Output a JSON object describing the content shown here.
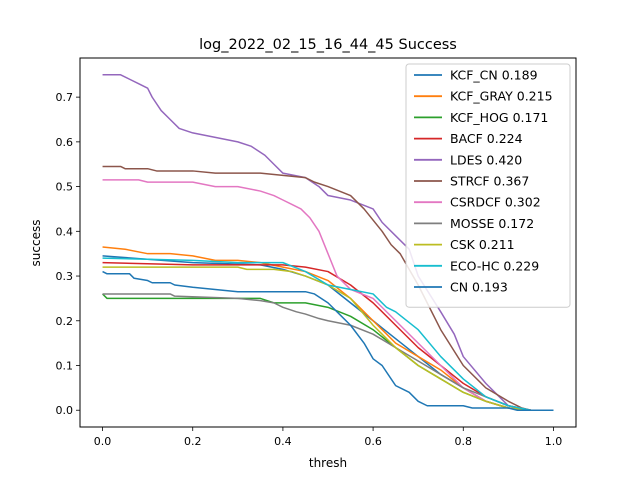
{
  "chart_data": {
    "type": "line",
    "title": "log_2022_02_15_16_44_45 Success",
    "xlabel": "thresh",
    "ylabel": "success",
    "xlim": [
      -0.05,
      1.05
    ],
    "ylim": [
      -0.0375,
      0.7875
    ],
    "xticks": [
      "0.0",
      "0.2",
      "0.4",
      "0.6",
      "0.8",
      "1.0"
    ],
    "yticks": [
      "0.0",
      "0.1",
      "0.2",
      "0.3",
      "0.4",
      "0.5",
      "0.6",
      "0.7"
    ],
    "legend_position": "top-right",
    "series": [
      {
        "name": "KCF_CN 0.189",
        "color": "#1f77b4",
        "points": [
          [
            0,
            0.345
          ],
          [
            0.2,
            0.33
          ],
          [
            0.35,
            0.325
          ],
          [
            0.4,
            0.315
          ],
          [
            0.45,
            0.3
          ],
          [
            0.5,
            0.28
          ],
          [
            0.55,
            0.24
          ],
          [
            0.6,
            0.2
          ],
          [
            0.65,
            0.16
          ],
          [
            0.7,
            0.12
          ],
          [
            0.75,
            0.08
          ],
          [
            0.8,
            0.05
          ],
          [
            0.85,
            0.02
          ],
          [
            0.9,
            0.005
          ],
          [
            0.95,
            0
          ],
          [
            1,
            0
          ]
        ]
      },
      {
        "name": "KCF_GRAY 0.215",
        "color": "#ff7f0e",
        "points": [
          [
            0,
            0.365
          ],
          [
            0.05,
            0.36
          ],
          [
            0.1,
            0.35
          ],
          [
            0.15,
            0.35
          ],
          [
            0.2,
            0.345
          ],
          [
            0.25,
            0.335
          ],
          [
            0.3,
            0.335
          ],
          [
            0.35,
            0.33
          ],
          [
            0.4,
            0.32
          ],
          [
            0.45,
            0.31
          ],
          [
            0.5,
            0.29
          ],
          [
            0.55,
            0.25
          ],
          [
            0.6,
            0.2
          ],
          [
            0.65,
            0.15
          ],
          [
            0.7,
            0.12
          ],
          [
            0.75,
            0.09
          ],
          [
            0.8,
            0.05
          ],
          [
            0.85,
            0.02
          ],
          [
            0.9,
            0.005
          ],
          [
            0.95,
            0
          ],
          [
            1,
            0
          ]
        ]
      },
      {
        "name": "KCF_HOG 0.171",
        "color": "#2ca02c",
        "points": [
          [
            0,
            0.26
          ],
          [
            0.01,
            0.25
          ],
          [
            0.2,
            0.25
          ],
          [
            0.35,
            0.25
          ],
          [
            0.38,
            0.24
          ],
          [
            0.45,
            0.24
          ],
          [
            0.5,
            0.23
          ],
          [
            0.55,
            0.21
          ],
          [
            0.6,
            0.18
          ],
          [
            0.65,
            0.14
          ],
          [
            0.7,
            0.1
          ],
          [
            0.75,
            0.07
          ],
          [
            0.8,
            0.04
          ],
          [
            0.85,
            0.02
          ],
          [
            0.9,
            0.005
          ],
          [
            0.95,
            0
          ],
          [
            1,
            0
          ]
        ]
      },
      {
        "name": "BACF 0.224",
        "color": "#d62728",
        "points": [
          [
            0,
            0.33
          ],
          [
            0.2,
            0.325
          ],
          [
            0.4,
            0.325
          ],
          [
            0.45,
            0.32
          ],
          [
            0.5,
            0.31
          ],
          [
            0.55,
            0.28
          ],
          [
            0.6,
            0.24
          ],
          [
            0.65,
            0.19
          ],
          [
            0.7,
            0.14
          ],
          [
            0.75,
            0.1
          ],
          [
            0.8,
            0.06
          ],
          [
            0.85,
            0.03
          ],
          [
            0.9,
            0.01
          ],
          [
            0.95,
            0
          ],
          [
            1,
            0
          ]
        ]
      },
      {
        "name": "LDES 0.420",
        "color": "#9467bd",
        "points": [
          [
            0,
            0.75
          ],
          [
            0.04,
            0.75
          ],
          [
            0.06,
            0.74
          ],
          [
            0.08,
            0.73
          ],
          [
            0.1,
            0.72
          ],
          [
            0.11,
            0.7
          ],
          [
            0.13,
            0.67
          ],
          [
            0.15,
            0.65
          ],
          [
            0.17,
            0.63
          ],
          [
            0.2,
            0.62
          ],
          [
            0.25,
            0.61
          ],
          [
            0.3,
            0.6
          ],
          [
            0.33,
            0.59
          ],
          [
            0.36,
            0.57
          ],
          [
            0.38,
            0.55
          ],
          [
            0.4,
            0.53
          ],
          [
            0.45,
            0.52
          ],
          [
            0.48,
            0.5
          ],
          [
            0.5,
            0.48
          ],
          [
            0.55,
            0.47
          ],
          [
            0.6,
            0.45
          ],
          [
            0.62,
            0.42
          ],
          [
            0.65,
            0.39
          ],
          [
            0.68,
            0.36
          ],
          [
            0.7,
            0.3
          ],
          [
            0.75,
            0.22
          ],
          [
            0.78,
            0.17
          ],
          [
            0.8,
            0.12
          ],
          [
            0.85,
            0.06
          ],
          [
            0.88,
            0.03
          ],
          [
            0.9,
            0.01
          ],
          [
            0.95,
            0
          ],
          [
            1,
            0
          ]
        ]
      },
      {
        "name": "STRCF 0.367",
        "color": "#8c564b",
        "points": [
          [
            0,
            0.545
          ],
          [
            0.04,
            0.545
          ],
          [
            0.05,
            0.54
          ],
          [
            0.1,
            0.54
          ],
          [
            0.12,
            0.535
          ],
          [
            0.2,
            0.535
          ],
          [
            0.25,
            0.53
          ],
          [
            0.35,
            0.53
          ],
          [
            0.4,
            0.525
          ],
          [
            0.45,
            0.52
          ],
          [
            0.47,
            0.51
          ],
          [
            0.5,
            0.5
          ],
          [
            0.55,
            0.48
          ],
          [
            0.58,
            0.45
          ],
          [
            0.62,
            0.4
          ],
          [
            0.64,
            0.37
          ],
          [
            0.66,
            0.35
          ],
          [
            0.7,
            0.28
          ],
          [
            0.75,
            0.18
          ],
          [
            0.8,
            0.1
          ],
          [
            0.85,
            0.05
          ],
          [
            0.9,
            0.02
          ],
          [
            0.93,
            0.005
          ],
          [
            0.95,
            0
          ],
          [
            1,
            0
          ]
        ]
      },
      {
        "name": "CSRDCF 0.302",
        "color": "#e377c2",
        "points": [
          [
            0,
            0.515
          ],
          [
            0.08,
            0.515
          ],
          [
            0.1,
            0.51
          ],
          [
            0.2,
            0.51
          ],
          [
            0.25,
            0.5
          ],
          [
            0.3,
            0.5
          ],
          [
            0.35,
            0.49
          ],
          [
            0.38,
            0.48
          ],
          [
            0.4,
            0.47
          ],
          [
            0.42,
            0.46
          ],
          [
            0.44,
            0.45
          ],
          [
            0.46,
            0.43
          ],
          [
            0.48,
            0.4
          ],
          [
            0.5,
            0.35
          ],
          [
            0.52,
            0.3
          ],
          [
            0.55,
            0.27
          ],
          [
            0.6,
            0.25
          ],
          [
            0.65,
            0.2
          ],
          [
            0.7,
            0.15
          ],
          [
            0.75,
            0.1
          ],
          [
            0.8,
            0.05
          ],
          [
            0.85,
            0.02
          ],
          [
            0.9,
            0.005
          ],
          [
            0.95,
            0
          ],
          [
            1,
            0
          ]
        ]
      },
      {
        "name": "MOSSE 0.172",
        "color": "#7f7f7f",
        "points": [
          [
            0,
            0.26
          ],
          [
            0.15,
            0.26
          ],
          [
            0.16,
            0.255
          ],
          [
            0.3,
            0.25
          ],
          [
            0.35,
            0.245
          ],
          [
            0.38,
            0.24
          ],
          [
            0.4,
            0.23
          ],
          [
            0.43,
            0.22
          ],
          [
            0.45,
            0.215
          ],
          [
            0.48,
            0.205
          ],
          [
            0.5,
            0.2
          ],
          [
            0.55,
            0.19
          ],
          [
            0.6,
            0.17
          ],
          [
            0.65,
            0.14
          ],
          [
            0.7,
            0.11
          ],
          [
            0.75,
            0.08
          ],
          [
            0.8,
            0.05
          ],
          [
            0.85,
            0.03
          ],
          [
            0.9,
            0.01
          ],
          [
            0.95,
            0
          ],
          [
            1,
            0
          ]
        ]
      },
      {
        "name": "CSK 0.211",
        "color": "#bcbd22",
        "points": [
          [
            0,
            0.32
          ],
          [
            0.1,
            0.32
          ],
          [
            0.2,
            0.32
          ],
          [
            0.25,
            0.32
          ],
          [
            0.3,
            0.32
          ],
          [
            0.32,
            0.315
          ],
          [
            0.38,
            0.315
          ],
          [
            0.42,
            0.31
          ],
          [
            0.45,
            0.3
          ],
          [
            0.5,
            0.28
          ],
          [
            0.55,
            0.25
          ],
          [
            0.6,
            0.19
          ],
          [
            0.65,
            0.14
          ],
          [
            0.7,
            0.1
          ],
          [
            0.75,
            0.07
          ],
          [
            0.8,
            0.04
          ],
          [
            0.85,
            0.02
          ],
          [
            0.9,
            0.005
          ],
          [
            0.95,
            0
          ],
          [
            1,
            0
          ]
        ]
      },
      {
        "name": "ECO-HC 0.229",
        "color": "#17becf",
        "points": [
          [
            0,
            0.34
          ],
          [
            0.2,
            0.335
          ],
          [
            0.3,
            0.33
          ],
          [
            0.4,
            0.33
          ],
          [
            0.45,
            0.31
          ],
          [
            0.5,
            0.28
          ],
          [
            0.55,
            0.27
          ],
          [
            0.6,
            0.26
          ],
          [
            0.63,
            0.23
          ],
          [
            0.65,
            0.22
          ],
          [
            0.7,
            0.18
          ],
          [
            0.75,
            0.12
          ],
          [
            0.8,
            0.07
          ],
          [
            0.85,
            0.03
          ],
          [
            0.9,
            0.01
          ],
          [
            0.95,
            0
          ],
          [
            1,
            0
          ]
        ]
      },
      {
        "name": "CN 0.193",
        "color": "#1f77b4",
        "points": [
          [
            0,
            0.31
          ],
          [
            0.01,
            0.305
          ],
          [
            0.06,
            0.305
          ],
          [
            0.07,
            0.295
          ],
          [
            0.1,
            0.29
          ],
          [
            0.11,
            0.285
          ],
          [
            0.15,
            0.285
          ],
          [
            0.16,
            0.28
          ],
          [
            0.2,
            0.275
          ],
          [
            0.25,
            0.27
          ],
          [
            0.3,
            0.265
          ],
          [
            0.4,
            0.265
          ],
          [
            0.45,
            0.265
          ],
          [
            0.47,
            0.26
          ],
          [
            0.5,
            0.24
          ],
          [
            0.52,
            0.22
          ],
          [
            0.55,
            0.19
          ],
          [
            0.58,
            0.15
          ],
          [
            0.6,
            0.115
          ],
          [
            0.62,
            0.1
          ],
          [
            0.65,
            0.055
          ],
          [
            0.68,
            0.04
          ],
          [
            0.7,
            0.02
          ],
          [
            0.72,
            0.01
          ],
          [
            0.8,
            0.01
          ],
          [
            0.82,
            0.005
          ],
          [
            0.9,
            0.005
          ],
          [
            0.92,
            0
          ],
          [
            1,
            0
          ]
        ]
      }
    ]
  }
}
